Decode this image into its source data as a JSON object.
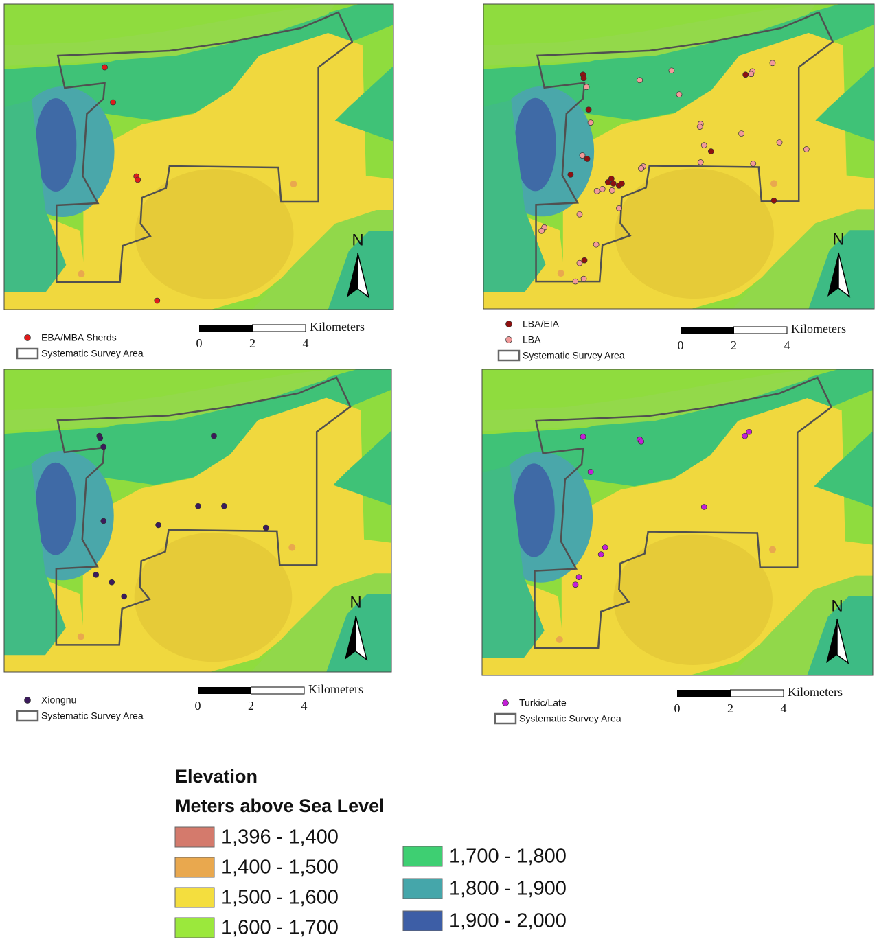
{
  "panels": [
    {
      "legend": [
        {
          "label": "EBA/MBA Sherds",
          "color": "#e01b1b"
        },
        {
          "label": "Systematic Survey Area",
          "color": "#666666"
        }
      ],
      "scale": {
        "unit": "Kilometers",
        "ticks": [
          0,
          2,
          4
        ]
      },
      "north": "N"
    },
    {
      "legend": [
        {
          "label": "LBA/EIA",
          "color": "#8e1010"
        },
        {
          "label": "LBA",
          "color": "#f29a9a"
        },
        {
          "label": "Systematic Survey Area",
          "color": "#666666"
        }
      ],
      "scale": {
        "unit": "Kilometers",
        "ticks": [
          0,
          2,
          4
        ]
      },
      "north": "N"
    },
    {
      "legend": [
        {
          "label": "Xiongnu",
          "color": "#3b1a5c"
        },
        {
          "label": "Systematic Survey Area",
          "color": "#666666"
        }
      ],
      "scale": {
        "unit": "Kilometers",
        "ticks": [
          0,
          2,
          4
        ]
      },
      "north": "N"
    },
    {
      "legend": [
        {
          "label": "Turkic/Late",
          "color": "#c21fd6"
        },
        {
          "label": "Systematic Survey Area",
          "color": "#666666"
        }
      ],
      "scale": {
        "unit": "Kilometers",
        "ticks": [
          0,
          2,
          4
        ]
      },
      "north": "N"
    }
  ],
  "elevation_legend": {
    "title": "Elevation",
    "subtitle": "Meters above Sea Level",
    "classes": [
      {
        "label": "1,396 - 1,400",
        "color": "#d47a6c"
      },
      {
        "label": "1,400 - 1,500",
        "color": "#e9a84e"
      },
      {
        "label": "1,500 - 1,600",
        "color": "#f4de3e"
      },
      {
        "label": "1,600 - 1,700",
        "color": "#9be83c"
      },
      {
        "label": "1,700 - 1,800",
        "color": "#3ecf72"
      },
      {
        "label": "1,800 - 1,900",
        "color": "#45a6aa"
      },
      {
        "label": "1,900 - 2,000",
        "color": "#3d5ea6"
      }
    ]
  }
}
